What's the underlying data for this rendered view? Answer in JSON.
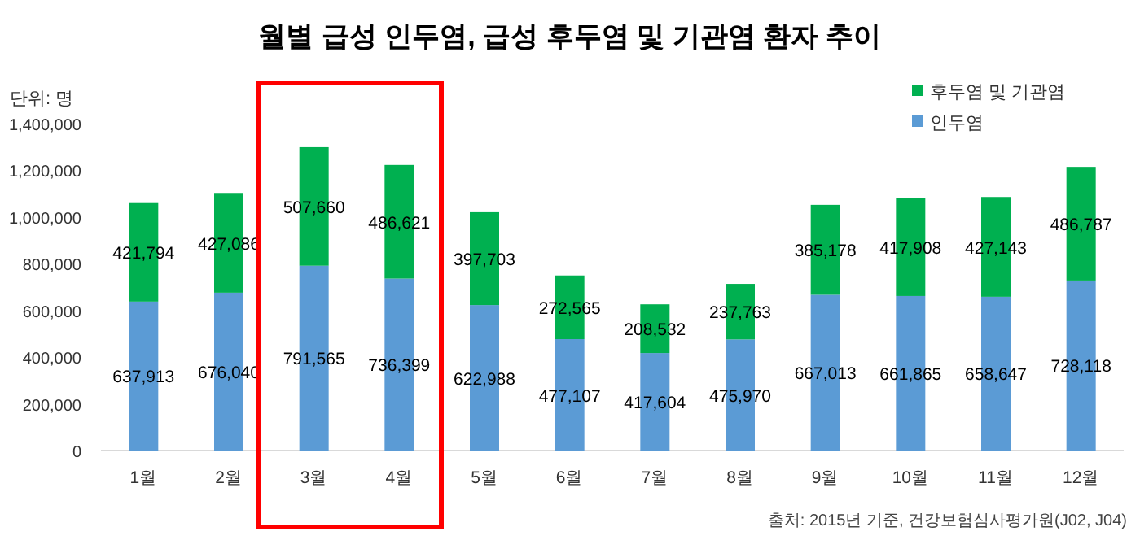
{
  "chart_data": {
    "type": "bar",
    "title": "월별 급성 인두염, 급성 후두염 및 기관염 환자 추이",
    "ylabel": "단위: 명",
    "annotations": [
      "출처: 2015년 기준, 건강보험심사평가원(J02, J04)"
    ],
    "categories": [
      "1월",
      "2월",
      "3월",
      "4월",
      "5월",
      "6월",
      "7월",
      "8월",
      "9월",
      "10월",
      "11월",
      "12월"
    ],
    "stacked": true,
    "legend": "top right",
    "grid": false,
    "ylim": [
      0,
      1400000
    ],
    "yticks": [
      {
        "value": 0,
        "label": "0"
      },
      {
        "value": 200000,
        "label": "200,000"
      },
      {
        "value": 400000,
        "label": "400,000"
      },
      {
        "value": 600000,
        "label": "600,000"
      },
      {
        "value": 800000,
        "label": "800,000"
      },
      {
        "value": 1000000,
        "label": "1,000,000"
      },
      {
        "value": 1200000,
        "label": "1,200,000"
      },
      {
        "value": 1400000,
        "label": "1,400,000"
      }
    ],
    "series": [
      {
        "name": "인두염",
        "color": "#5b9bd5",
        "values": [
          637913,
          676040,
          791565,
          736399,
          622988,
          477107,
          417604,
          475970,
          667013,
          661865,
          658647,
          728118
        ],
        "value_labels": [
          "637,913",
          "676,040",
          "791,565",
          "736,399",
          "622,988",
          "477,107",
          "417,604",
          "475,970",
          "667,013",
          "661,865",
          "658,647",
          "728,118"
        ]
      },
      {
        "name": "후두염 및 기관염",
        "color": "#00b050",
        "values": [
          421794,
          427086,
          507660,
          486621,
          397703,
          272565,
          208532,
          237763,
          385178,
          417908,
          427143,
          486787
        ],
        "value_labels": [
          "421,794",
          "427,086",
          "507,660",
          "486,621",
          "397,703",
          "272,565",
          "208,532",
          "237,763",
          "385,178",
          "417,908",
          "427,143",
          "486,787"
        ]
      }
    ]
  }
}
